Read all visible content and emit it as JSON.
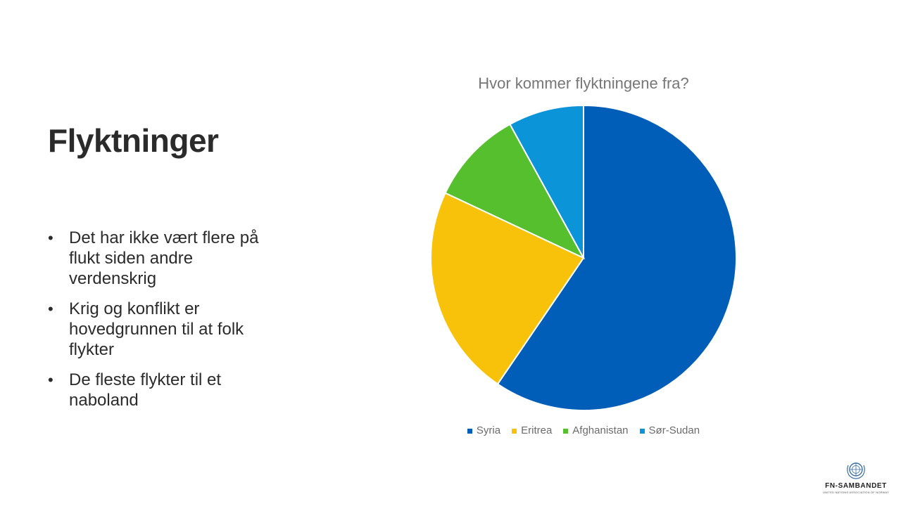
{
  "slide": {
    "title": "Flyktninger",
    "bullets": [
      "Det har ikke vært flere på flukt siden andre verdenskrig",
      "Krig og konflikt er hovedgrunnen til at folk flykter",
      "De fleste flykter til et naboland"
    ],
    "bullet_glyph": "•"
  },
  "chart_data": {
    "type": "pie",
    "title": "Hvor kommer flyktningene fra?",
    "categories": [
      "Syria",
      "Eritrea",
      "Afghanistan",
      "Sør-Sudan"
    ],
    "values": [
      59.5,
      22.5,
      10,
      8
    ],
    "colors": [
      "#005EB8",
      "#F9C20A",
      "#56BF2D",
      "#0B95D8"
    ],
    "legend_position": "bottom"
  },
  "logo": {
    "name": "FN-SAMBANDET",
    "subtitle": "UNITED NATIONS ASSOCIATION OF NORWAY",
    "icon": "un-emblem-icon"
  }
}
